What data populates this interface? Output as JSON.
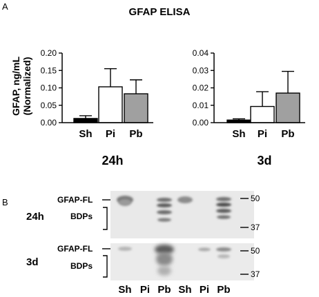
{
  "panel_labels": {
    "a": "A",
    "b": "B"
  },
  "chart_data": [
    {
      "type": "bar",
      "title": "GFAP ELISA",
      "ylabel": "GFAP, ng/mL",
      "ylabel2": "(Normalized)",
      "xlabel": "24h",
      "categories": [
        "Sh",
        "Pi",
        "Pb"
      ],
      "values": [
        0.012,
        0.103,
        0.083
      ],
      "errors": [
        0.008,
        0.052,
        0.04
      ],
      "bar_colors": [
        "#000000",
        "#ffffff",
        "#a0a0a0"
      ],
      "ylim": [
        0,
        0.2
      ],
      "yticks": [
        "0.00",
        "0.05",
        "0.10",
        "0.15",
        "0.20"
      ],
      "ytick_values": [
        0,
        0.05,
        0.1,
        0.15,
        0.2
      ],
      "grid": false
    },
    {
      "type": "bar",
      "xlabel": "3d",
      "categories": [
        "Sh",
        "Pi",
        "Pb"
      ],
      "values": [
        0.0015,
        0.0093,
        0.017
      ],
      "errors": [
        0.0007,
        0.0085,
        0.0125
      ],
      "bar_colors": [
        "#000000",
        "#ffffff",
        "#a0a0a0"
      ],
      "ylim": [
        0,
        0.04
      ],
      "yticks": [
        "0.00",
        "0.01",
        "0.02",
        "0.03",
        "0.04"
      ],
      "ytick_values": [
        0,
        0.01,
        0.02,
        0.03,
        0.04
      ],
      "grid": false
    }
  ],
  "blot": {
    "rows": [
      {
        "label": "24h",
        "band_labels": [
          "GFAP-FL",
          "BDPs"
        ],
        "markers": [
          "50",
          "37"
        ]
      },
      {
        "label": "3d",
        "band_labels": [
          "GFAP-FL",
          "BDPs"
        ],
        "markers": [
          "50",
          "37"
        ]
      }
    ],
    "lanes": [
      "Sh",
      "Pi",
      "Pb",
      "Sh",
      "Pi",
      "Pb"
    ]
  }
}
